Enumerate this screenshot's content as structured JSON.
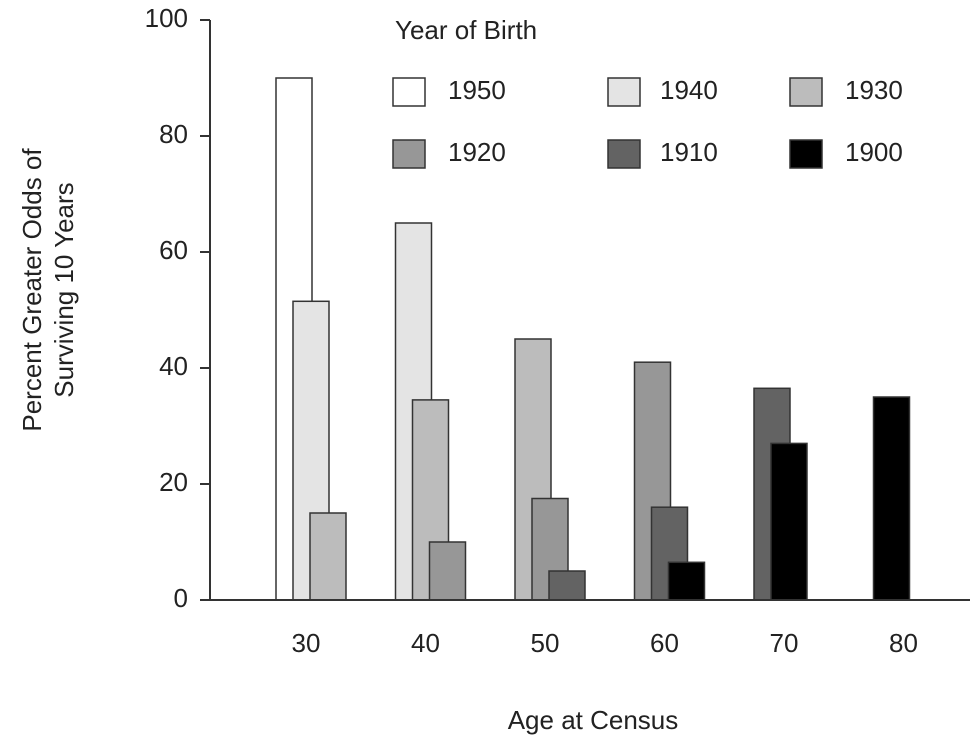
{
  "chart_data": {
    "type": "bar",
    "legend_title": "Year of Birth",
    "xlabel": "Age at Census",
    "ylabel": [
      "Percent Greater Odds of",
      "Surviving 10 Years"
    ],
    "categories": [
      "30",
      "40",
      "50",
      "60",
      "70",
      "80"
    ],
    "series": [
      {
        "name": "1950",
        "color": "#ffffff",
        "values": [
          90,
          null,
          null,
          null,
          null,
          null
        ]
      },
      {
        "name": "1940",
        "color": "#e4e4e4",
        "values": [
          51.5,
          65,
          null,
          null,
          null,
          null
        ]
      },
      {
        "name": "1930",
        "color": "#bcbcbc",
        "values": [
          15,
          34.5,
          45,
          null,
          null,
          null
        ]
      },
      {
        "name": "1920",
        "color": "#979797",
        "values": [
          null,
          10,
          17.5,
          41,
          null,
          null
        ]
      },
      {
        "name": "1910",
        "color": "#636363",
        "values": [
          null,
          null,
          5,
          16,
          36.5,
          null
        ]
      },
      {
        "name": "1900",
        "color": "#000000",
        "values": [
          null,
          null,
          null,
          6.5,
          27,
          35
        ]
      }
    ],
    "ylim": [
      0,
      100
    ],
    "yticks": [
      0,
      20,
      40,
      60,
      80,
      100
    ]
  }
}
